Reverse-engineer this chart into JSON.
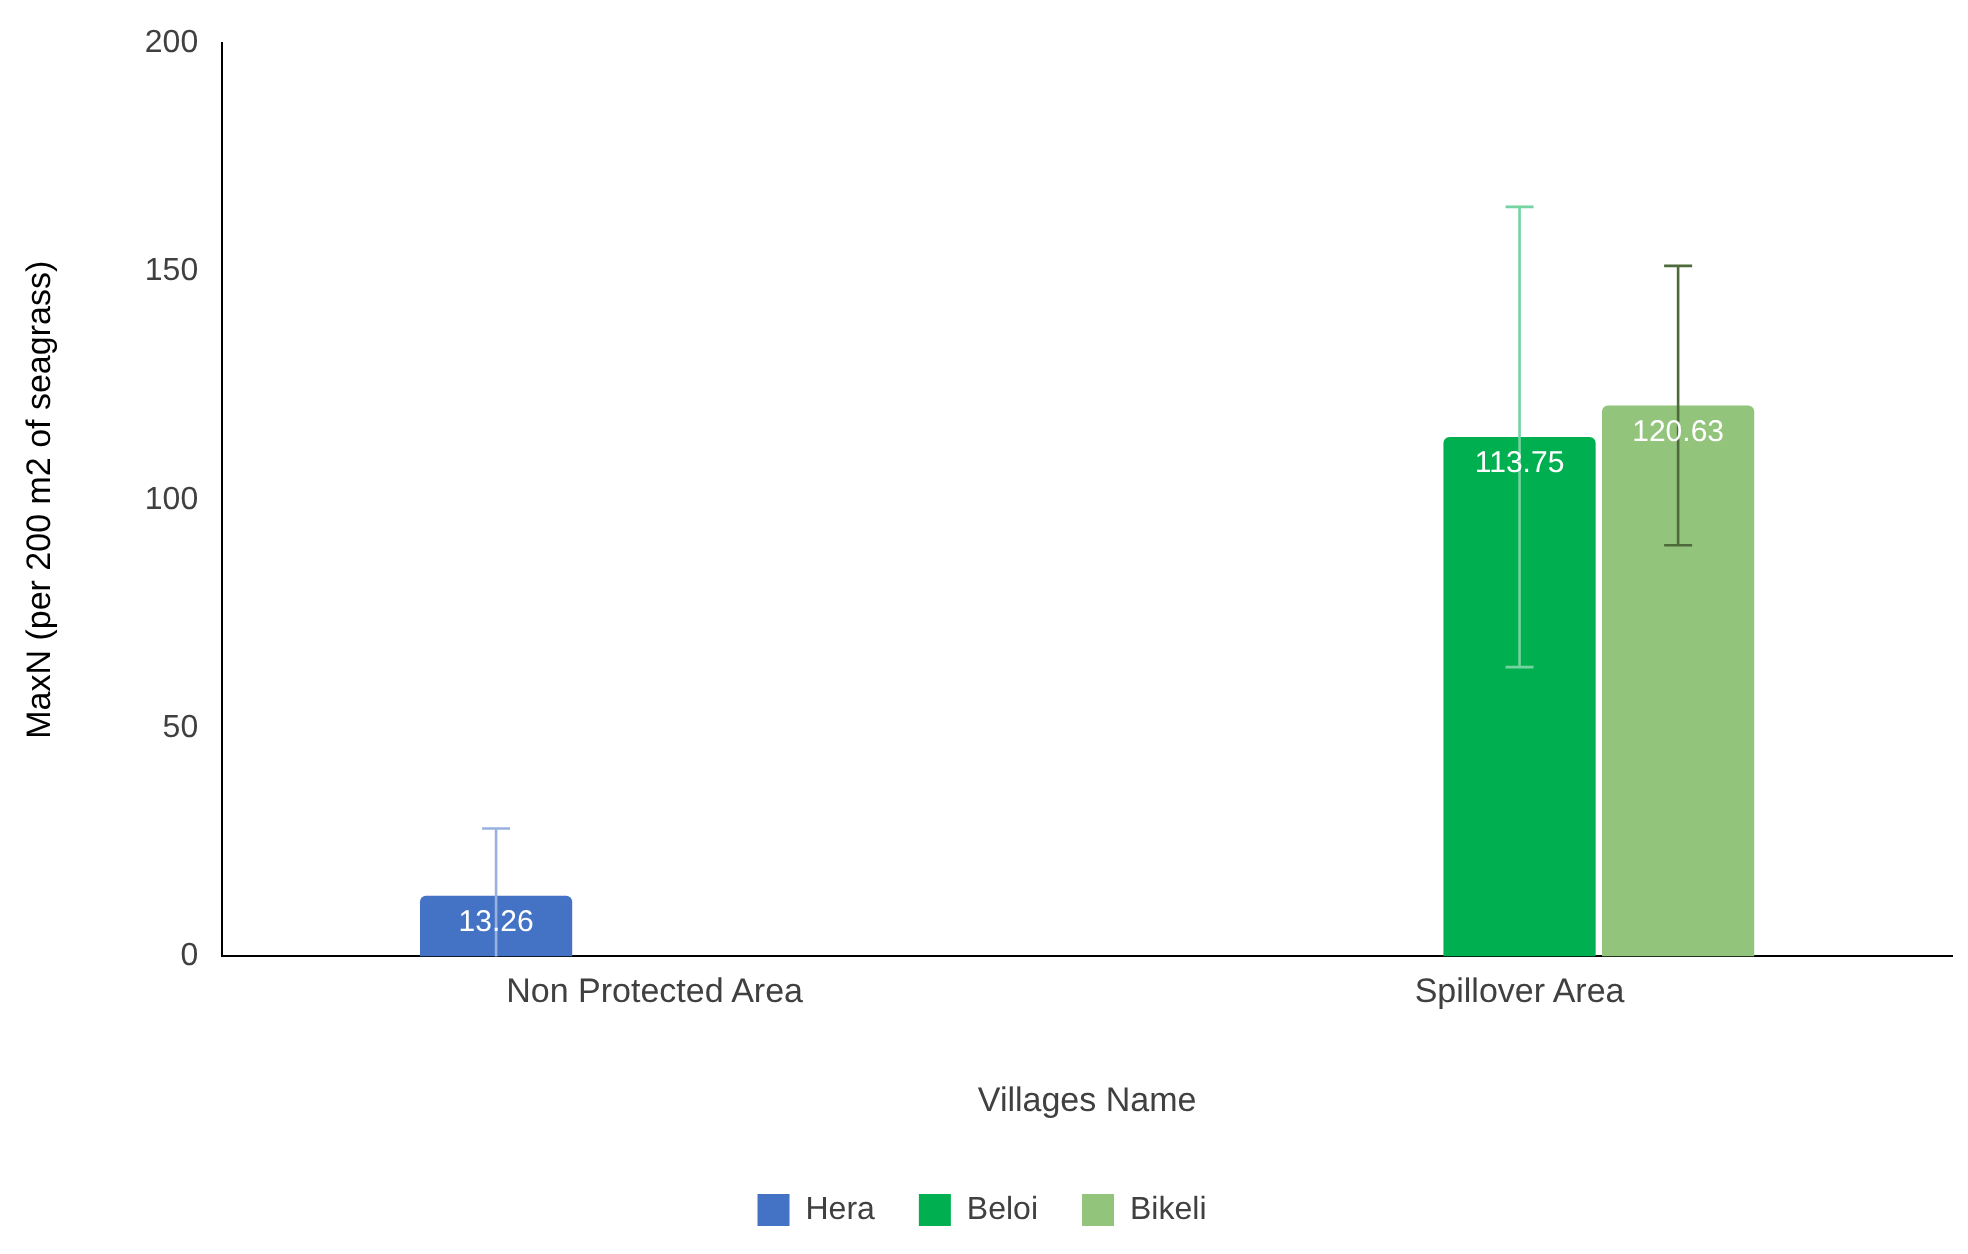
{
  "chart_data": {
    "type": "bar",
    "xlabel": "Villages Name",
    "ylabel": "MaxN (per 200 m2 of seagrass)",
    "categories": [
      "Non Protected Area",
      "Spillover Area"
    ],
    "series": [
      {
        "name": "Hera",
        "color": "#4472c4",
        "values": [
          13.26,
          null
        ],
        "errors": [
          [
            0,
            28
          ],
          null
        ]
      },
      {
        "name": "Beloi",
        "color": "#00b050",
        "values": [
          null,
          113.75
        ],
        "errors": [
          null,
          50.4
        ]
      },
      {
        "name": "Bikeli",
        "color": "#92c47c",
        "values": [
          null,
          120.63
        ],
        "errors": [
          null,
          30.6
        ]
      }
    ],
    "ylim": [
      0,
      200
    ],
    "yticks": [
      0,
      50,
      100,
      150,
      200
    ],
    "grid": false,
    "legend": "bottom",
    "data_labels": true
  }
}
